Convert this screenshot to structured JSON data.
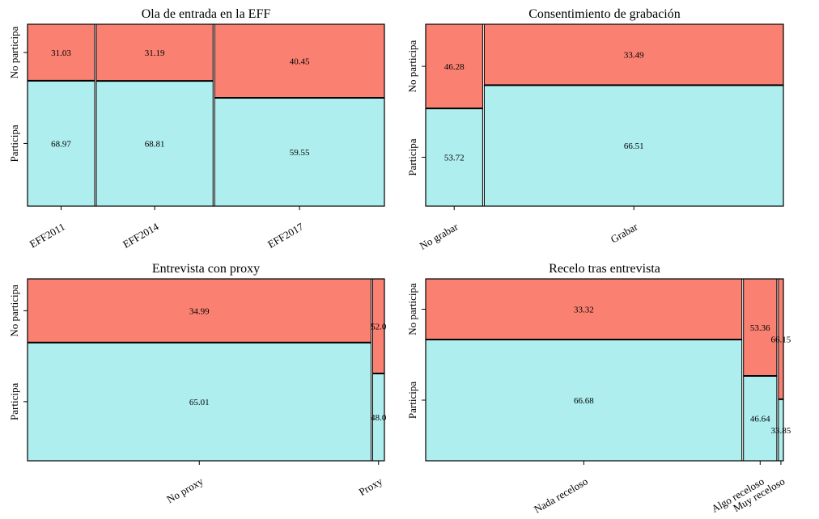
{
  "chart_data": [
    {
      "type": "mosaic",
      "title": "Ola de entrada en la EFF",
      "categories": [
        "EFF2011",
        "EFF2014",
        "EFF2017"
      ],
      "widths": [
        0.19,
        0.33,
        0.48
      ],
      "row_labels": [
        "No participa",
        "Participa"
      ],
      "series": [
        {
          "name": "No participa",
          "values": [
            31.03,
            31.19,
            40.45
          ]
        },
        {
          "name": "Participa",
          "values": [
            68.97,
            68.81,
            59.55
          ]
        }
      ]
    },
    {
      "type": "mosaic",
      "title": "Consentimiento de grabación",
      "categories": [
        "No grabar",
        "Grabar"
      ],
      "widths": [
        0.16,
        0.84
      ],
      "row_labels": [
        "No participa",
        "Participa"
      ],
      "series": [
        {
          "name": "No participa",
          "values": [
            46.28,
            33.49
          ]
        },
        {
          "name": "Participa",
          "values": [
            53.72,
            66.51
          ]
        }
      ]
    },
    {
      "type": "mosaic",
      "title": "Entrevista con proxy",
      "categories": [
        "No proxy",
        "Proxy"
      ],
      "widths": [
        0.967,
        0.033
      ],
      "row_labels": [
        "No participa",
        "Participa"
      ],
      "series": [
        {
          "name": "No participa",
          "values": [
            34.99,
            52.0
          ]
        },
        {
          "name": "Participa",
          "values": [
            65.01,
            48.0
          ]
        }
      ]
    },
    {
      "type": "mosaic",
      "title": "Recelo tras entrevista",
      "categories": [
        "Nada receloso",
        "Algo receloso",
        "Muy receloso"
      ],
      "widths": [
        0.892,
        0.094,
        0.014
      ],
      "row_labels": [
        "No participa",
        "Participa"
      ],
      "series": [
        {
          "name": "No participa",
          "values": [
            33.32,
            53.36,
            66.15
          ]
        },
        {
          "name": "Participa",
          "values": [
            66.68,
            46.64,
            33.85
          ]
        }
      ]
    }
  ],
  "colors": {
    "no_participa": "#fa8072",
    "participa": "#afeeee",
    "edge": "#000000"
  }
}
